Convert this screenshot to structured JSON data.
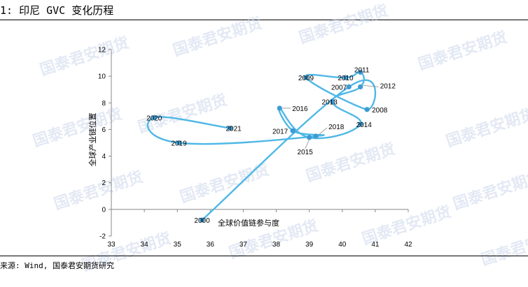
{
  "header": {
    "title": "1: 印尼 GVC 变化历程"
  },
  "footer": {
    "source": "来源: Wind, 国泰君安期货研究"
  },
  "watermark": {
    "text": "国泰君安期货"
  },
  "colors": {
    "line": "#4fb8e6",
    "point": "#3d9bd3"
  },
  "chart_data": {
    "type": "scatter",
    "title": "",
    "xlabel": "全球价值链参与度",
    "ylabel": "全球产业链位置",
    "xlim": [
      33,
      42
    ],
    "ylim": [
      -2,
      12
    ],
    "xticks": [
      33,
      34,
      35,
      36,
      37,
      38,
      39,
      40,
      41,
      42
    ],
    "yticks": [
      -2,
      0,
      2,
      4,
      6,
      8,
      10,
      12
    ],
    "grid": false,
    "connected": true,
    "points": [
      {
        "label": "2000",
        "x": 35.75,
        "y": -0.8
      },
      {
        "label": "2007",
        "x": 40.2,
        "y": 9.2
      },
      {
        "label": "2008",
        "x": 40.75,
        "y": 7.5
      },
      {
        "label": "2009",
        "x": 38.9,
        "y": 9.9
      },
      {
        "label": "2010",
        "x": 40.1,
        "y": 9.9
      },
      {
        "label": "2011",
        "x": 40.55,
        "y": 10.3
      },
      {
        "label": "2012",
        "x": 40.55,
        "y": 9.2
      },
      {
        "label": "2013",
        "x": 39.7,
        "y": 8.1
      },
      {
        "label": "2014",
        "x": 40.55,
        "y": 6.4
      },
      {
        "label": "2015",
        "x": 39.0,
        "y": 5.4
      },
      {
        "label": "2016",
        "x": 38.1,
        "y": 7.6
      },
      {
        "label": "2017",
        "x": 38.5,
        "y": 5.9
      },
      {
        "label": "2018",
        "x": 39.2,
        "y": 5.5
      },
      {
        "label": "2019",
        "x": 35.05,
        "y": 5.0
      },
      {
        "label": "2020",
        "x": 34.3,
        "y": 6.9
      },
      {
        "label": "2021",
        "x": 36.6,
        "y": 6.1
      }
    ]
  }
}
